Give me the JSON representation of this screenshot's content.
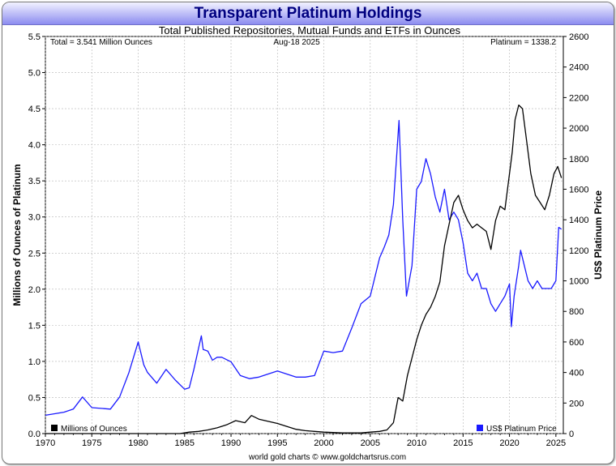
{
  "chart_data": {
    "type": "line",
    "title": "Transparent Platinum Holdings",
    "subtitle": "Total Published Repositories, Mutual Funds and ETFs in Ounces",
    "annotations": {
      "total": "Total = 3.541 Million Ounces",
      "date": "Aug-18  2025",
      "price": "Platinum = 1338.2"
    },
    "ylabel_left": "Millions of Ounces of Platinum",
    "ylabel_right": "US$ Platinum Price",
    "footer": "world gold charts © www.goldchartsrus.com",
    "xlim": [
      1970,
      2025.8
    ],
    "ylim_left": [
      0,
      5.5
    ],
    "ylim_right": [
      0,
      2600
    ],
    "x_ticks": [
      "1970",
      "1975",
      "1980",
      "1985",
      "1990",
      "1995",
      "2000",
      "2005",
      "2010",
      "2015",
      "2020",
      "2025"
    ],
    "y_ticks_left": [
      "0.0",
      "0.5",
      "1.0",
      "1.5",
      "2.0",
      "2.5",
      "3.0",
      "3.5",
      "4.0",
      "4.5",
      "5.0",
      "5.5"
    ],
    "y_ticks_right": [
      "0",
      "200",
      "400",
      "600",
      "800",
      "1000",
      "1200",
      "1400",
      "1600",
      "1800",
      "2000",
      "2200",
      "2400",
      "2600"
    ],
    "grid": true,
    "colors": {
      "holdings": "#000000",
      "price": "#1a1aff",
      "title": "#000080"
    },
    "series": [
      {
        "name": "Millions of Ounces",
        "axis": "left",
        "x": [
          1970,
          1984.5,
          1985.5,
          1986.5,
          1987.5,
          1988.5,
          1989.5,
          1990.5,
          1991.5,
          1992.2,
          1993,
          1994,
          1995,
          1996,
          1997,
          1998,
          1999,
          2000,
          2002,
          2004,
          2005,
          2006,
          2006.8,
          2007.5,
          2008,
          2008.5,
          2009,
          2009.5,
          2010,
          2010.5,
          2011,
          2011.5,
          2012,
          2012.5,
          2013,
          2013.5,
          2014,
          2014.5,
          2015,
          2015.5,
          2016,
          2016.5,
          2017,
          2017.5,
          2018,
          2018.5,
          2019,
          2019.5,
          2020,
          2020.3,
          2020.6,
          2021,
          2021.4,
          2021.8,
          2022.3,
          2022.8,
          2023.3,
          2023.8,
          2024.3,
          2024.8,
          2025.2,
          2025.6
        ],
        "values": [
          0,
          0,
          0.02,
          0.03,
          0.05,
          0.08,
          0.12,
          0.18,
          0.15,
          0.25,
          0.2,
          0.17,
          0.14,
          0.1,
          0.06,
          0.04,
          0.03,
          0.02,
          0.01,
          0.01,
          0.02,
          0.03,
          0.05,
          0.15,
          0.5,
          0.45,
          0.8,
          1.05,
          1.3,
          1.5,
          1.65,
          1.75,
          1.9,
          2.1,
          2.6,
          2.9,
          3.2,
          3.3,
          3.1,
          2.95,
          2.85,
          2.9,
          2.85,
          2.8,
          2.55,
          2.95,
          3.15,
          3.1,
          3.6,
          3.9,
          4.35,
          4.55,
          4.5,
          4.1,
          3.6,
          3.3,
          3.2,
          3.1,
          3.3,
          3.6,
          3.7,
          3.541
        ]
      },
      {
        "name": "US$ Platinum Price",
        "axis": "right",
        "x": [
          1970,
          1971,
          1972,
          1973,
          1974,
          1975,
          1976,
          1977,
          1978,
          1979,
          1980,
          1980.6,
          1981,
          1982,
          1983,
          1984,
          1985,
          1985.5,
          1986,
          1986.5,
          1986.8,
          1987,
          1987.5,
          1988,
          1988.5,
          1989,
          1990,
          1991,
          1992,
          1993,
          1994,
          1995,
          1996,
          1997,
          1998,
          1999,
          2000,
          2001,
          2002,
          2003,
          2004,
          2005,
          2006,
          2006.5,
          2007,
          2007.5,
          2008.1,
          2008.5,
          2008.9,
          2009.5,
          2010,
          2010.5,
          2011,
          2011.5,
          2012,
          2012.5,
          2013,
          2013.5,
          2014,
          2014.5,
          2015,
          2015.5,
          2016,
          2016.5,
          2017,
          2017.5,
          2018,
          2018.5,
          2019,
          2019.5,
          2020,
          2020.2,
          2020.5,
          2021,
          2021.2,
          2021.6,
          2022,
          2022.5,
          2023,
          2023.5,
          2024,
          2024.5,
          2025,
          2025.3,
          2025.6
        ],
        "values": [
          120,
          130,
          140,
          160,
          240,
          170,
          165,
          160,
          240,
          400,
          600,
          450,
          400,
          330,
          420,
          350,
          290,
          300,
          420,
          560,
          640,
          550,
          540,
          480,
          500,
          500,
          470,
          380,
          360,
          370,
          390,
          410,
          390,
          370,
          370,
          380,
          540,
          530,
          540,
          690,
          850,
          900,
          1150,
          1220,
          1300,
          1500,
          2050,
          1400,
          900,
          1100,
          1600,
          1650,
          1800,
          1700,
          1550,
          1450,
          1600,
          1400,
          1450,
          1400,
          1250,
          1050,
          1000,
          1050,
          950,
          950,
          850,
          800,
          850,
          900,
          980,
          700,
          900,
          1100,
          1200,
          1100,
          1000,
          950,
          1000,
          950,
          950,
          950,
          1000,
          1350,
          1338.2
        ]
      }
    ]
  }
}
